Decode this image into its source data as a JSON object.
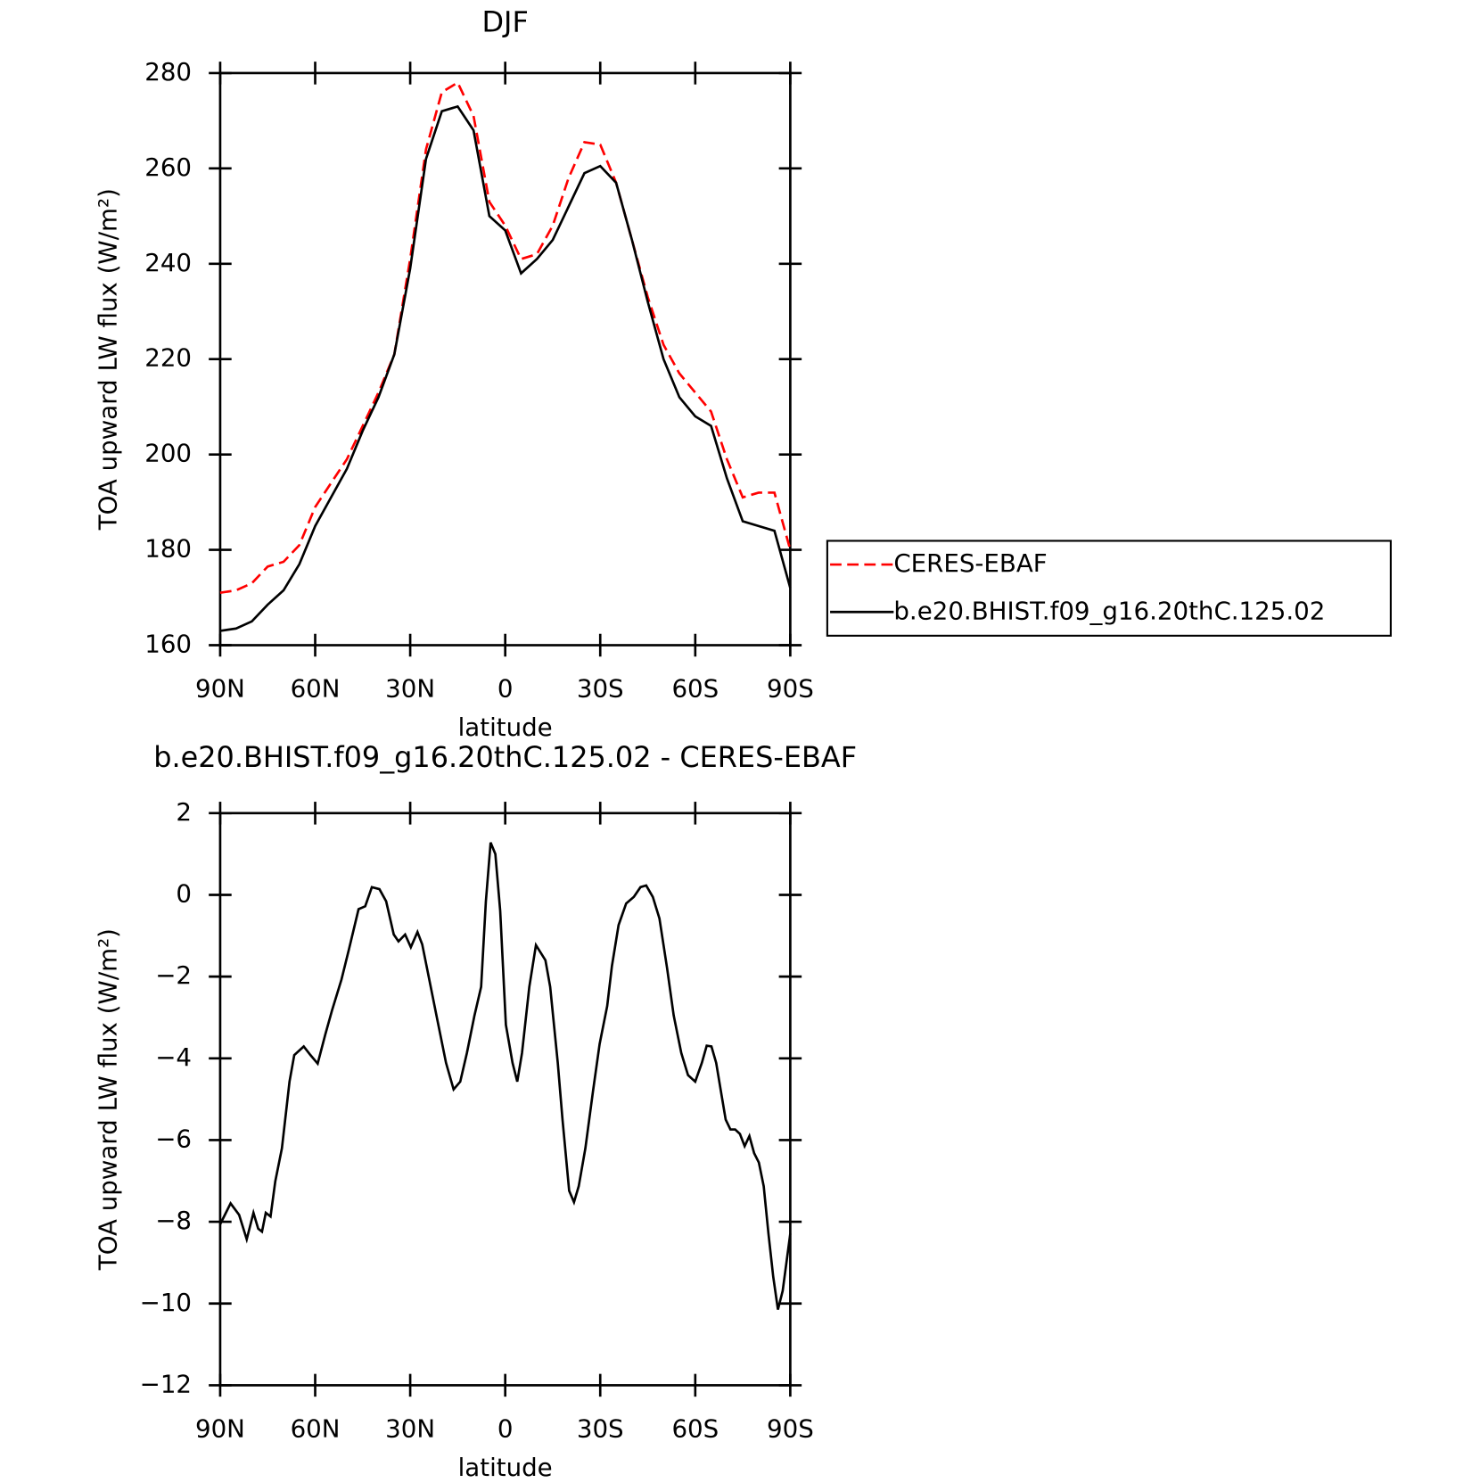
{
  "chart_data": [
    {
      "type": "line",
      "title": "DJF",
      "x_label": "latitude",
      "y_label": "TOA upward LW flux (W/m²)",
      "x": [
        90,
        85,
        80,
        75,
        70,
        65,
        60,
        55,
        50,
        45,
        40,
        35,
        30,
        25,
        20,
        15,
        10,
        5,
        0,
        -5,
        -10,
        -15,
        -20,
        -25,
        -30,
        -35,
        -40,
        -45,
        -50,
        -55,
        -60,
        -65,
        -70,
        -75,
        -80,
        -85,
        -90
      ],
      "series": [
        {
          "name": "CERES-EBAF",
          "color": "#ff0000",
          "line_style": "dashed",
          "values": [
            171,
            171.5,
            173,
            176.5,
            177.5,
            181,
            189,
            194,
            199,
            206,
            213,
            221,
            241,
            264,
            276,
            278,
            271,
            253,
            248,
            241,
            242,
            248,
            258,
            265.5,
            265,
            257,
            245,
            233,
            223,
            217,
            213,
            209,
            199,
            191,
            192,
            192,
            180
          ]
        },
        {
          "name": "b.e20.BHIST.f09_g16.20thC.125.02",
          "color": "#000000",
          "line_style": "solid",
          "values": [
            163,
            163.5,
            165,
            168.5,
            171.5,
            177,
            185,
            191,
            197,
            205,
            212,
            221,
            239,
            262,
            272,
            273,
            268,
            250,
            247,
            238,
            241,
            245,
            252,
            259,
            260.5,
            257,
            245,
            232,
            220,
            212,
            208,
            206,
            195,
            186,
            185,
            184,
            172
          ]
        }
      ],
      "xlim": [
        90,
        -90
      ],
      "xticks": [
        {
          "value": 90,
          "label": "90N"
        },
        {
          "value": 60,
          "label": "60N"
        },
        {
          "value": 30,
          "label": "30N"
        },
        0,
        {
          "value": -30,
          "label": "30S"
        },
        {
          "value": -60,
          "label": "60S"
        },
        {
          "value": -90,
          "label": "90S"
        }
      ],
      "ylim": [
        160,
        280
      ],
      "yticks": [
        160,
        180,
        200,
        220,
        240,
        260,
        280
      ],
      "legend": "right"
    },
    {
      "type": "line",
      "title": "b.e20.BHIST.f09_g16.20thC.125.02 - CERES-EBAF",
      "x_label": "latitude",
      "y_label": "TOA upward LW flux (W/m²)",
      "x": [
        90,
        86.7,
        84,
        81.6,
        79.5,
        78,
        76.8,
        75.6,
        74.1,
        72.6,
        70.5,
        68.1,
        66.6,
        63.6,
        61.5,
        59.2,
        56.8,
        54.7,
        51.7,
        49.3,
        46.3,
        44.2,
        42.1,
        39.7,
        37.6,
        35.2,
        33.7,
        31.6,
        29.8,
        27.7,
        26.2,
        24.7,
        21.7,
        18.7,
        16.3,
        14.2,
        12.1,
        9.7,
        7.6,
        6.1,
        4.6,
        3.1,
        1.6,
        -0.2,
        -2.3,
        -3.8,
        -5.3,
        -7.6,
        -9.7,
        -12.7,
        -14.2,
        -16.6,
        -18.1,
        -20.2,
        -21.7,
        -23.2,
        -25.3,
        -27.7,
        -29.8,
        -32.2,
        -33.7,
        -35.8,
        -38.2,
        -40.6,
        -42.7,
        -44.5,
        -46.6,
        -48.7,
        -51.1,
        -53.2,
        -55.6,
        -57.7,
        -60,
        -62.1,
        -63.6,
        -65.1,
        -66.6,
        -68.1,
        -69.6,
        -71.1,
        -72.6,
        -74.1,
        -75.6,
        -77.1,
        -78.6,
        -80.1,
        -81.6,
        -83.1,
        -84.6,
        -86.1,
        -87.6,
        -90
      ],
      "series": [
        {
          "name": "b.e20.BHIST.f09_g16.20thC.125.02 - CERES-EBAF",
          "color": "#000000",
          "line_style": "solid",
          "values": [
            -8.06,
            -7.55,
            -7.83,
            -8.43,
            -7.78,
            -8.17,
            -8.24,
            -7.78,
            -7.87,
            -7.01,
            -6.2,
            -4.57,
            -3.92,
            -3.71,
            -3.92,
            -4.13,
            -3.41,
            -2.83,
            -2.07,
            -1.32,
            -0.35,
            -0.28,
            0.19,
            0.14,
            -0.16,
            -0.97,
            -1.14,
            -0.97,
            -1.28,
            -0.91,
            -1.21,
            -1.79,
            -2.95,
            -4.11,
            -4.76,
            -4.57,
            -3.87,
            -2.95,
            -2.25,
            -0.16,
            1.28,
            1.0,
            -0.39,
            -3.18,
            -4.11,
            -4.57,
            -3.87,
            -2.25,
            -1.23,
            -1.6,
            -2.25,
            -4.11,
            -5.5,
            -7.24,
            -7.52,
            -7.13,
            -6.2,
            -4.81,
            -3.65,
            -2.72,
            -1.74,
            -0.74,
            -0.21,
            -0.05,
            0.19,
            0.23,
            -0.05,
            -0.58,
            -1.79,
            -2.95,
            -3.87,
            -4.41,
            -4.57,
            -4.11,
            -3.69,
            -3.71,
            -4.11,
            -4.81,
            -5.5,
            -5.74,
            -5.74,
            -5.85,
            -6.15,
            -5.9,
            -6.32,
            -6.55,
            -7.13,
            -8.29,
            -9.34,
            -10.15,
            -9.69,
            -8.29
          ]
        }
      ],
      "xlim": [
        90,
        -90
      ],
      "xticks": [
        {
          "value": 90,
          "label": "90N"
        },
        {
          "value": 60,
          "label": "60N"
        },
        {
          "value": 30,
          "label": "30N"
        },
        0,
        {
          "value": -30,
          "label": "30S"
        },
        {
          "value": -60,
          "label": "60S"
        },
        {
          "value": -90,
          "label": "90S"
        }
      ],
      "ylim": [
        -12,
        2
      ],
      "yticks": [
        {
          "value": -12,
          "label": "−12"
        },
        {
          "value": -10,
          "label": "−10"
        },
        {
          "value": -8,
          "label": "−8"
        },
        {
          "value": -6,
          "label": "−6"
        },
        {
          "value": -4,
          "label": "−4"
        },
        {
          "value": -2,
          "label": "−2"
        },
        0,
        2
      ]
    }
  ]
}
